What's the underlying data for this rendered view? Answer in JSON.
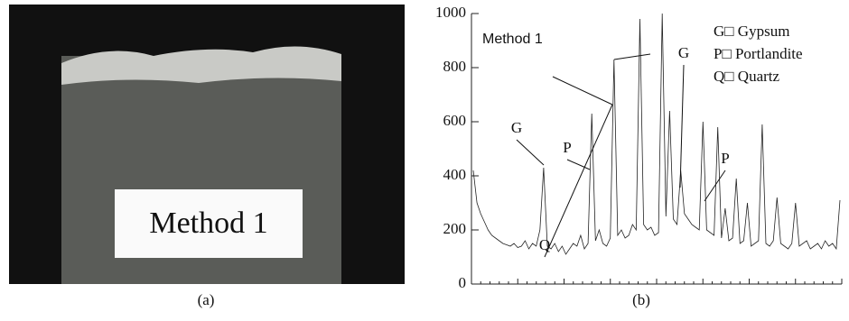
{
  "photo": {
    "label": "Method 1",
    "caption": "(a)"
  },
  "chart_data": {
    "type": "line",
    "caption": "(b)",
    "title": "Method 1",
    "legend": [
      "G□ Gypsum",
      "P□ Portlandite",
      "Q□ Quartz"
    ],
    "annotations": [
      "G",
      "P",
      "Q",
      "G",
      "P"
    ],
    "color": "#222222",
    "ylim": [
      0,
      1000
    ],
    "yticks": [
      0,
      200,
      400,
      600,
      800,
      1000
    ],
    "values": [
      420,
      300,
      260,
      230,
      200,
      180,
      170,
      160,
      150,
      145,
      140,
      150,
      135,
      140,
      160,
      130,
      150,
      140,
      200,
      430,
      140,
      130,
      150,
      120,
      140,
      110,
      130,
      150,
      140,
      180,
      130,
      150,
      630,
      160,
      200,
      150,
      140,
      170,
      830,
      180,
      200,
      170,
      180,
      220,
      200,
      980,
      220,
      200,
      210,
      180,
      190,
      1000,
      250,
      640,
      240,
      220,
      420,
      260,
      240,
      220,
      210,
      200,
      600,
      200,
      190,
      180,
      580,
      170,
      280,
      160,
      170,
      390,
      150,
      160,
      300,
      140,
      150,
      160,
      590,
      150,
      140,
      160,
      320,
      150,
      140,
      130,
      150,
      300,
      140,
      150,
      160,
      130,
      140,
      150,
      130,
      160,
      140,
      150,
      130,
      310
    ]
  }
}
